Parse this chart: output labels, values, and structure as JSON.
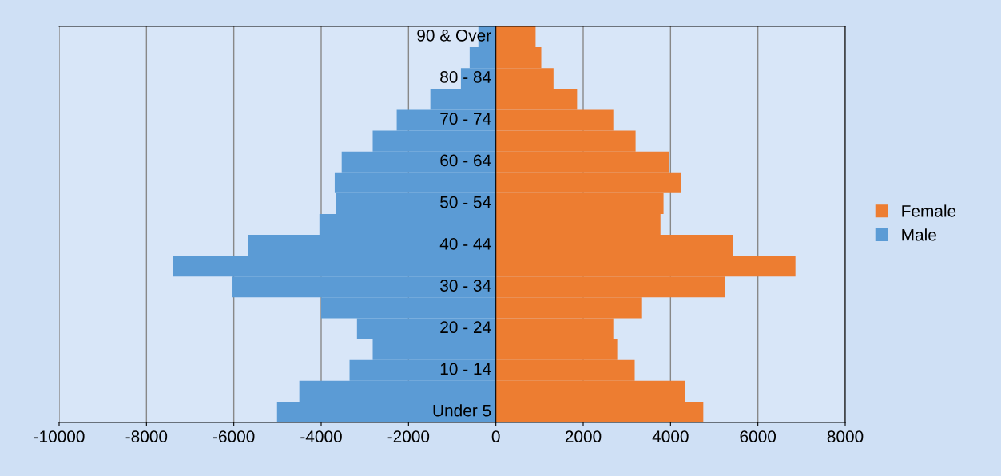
{
  "chart_data": {
    "type": "bar",
    "orientation": "horizontal",
    "categories": [
      "90 & Over",
      null,
      "80 - 84",
      null,
      "70 - 74",
      null,
      "60 - 64",
      null,
      "50 - 54",
      null,
      "40 - 44",
      null,
      "30 - 34",
      null,
      "20 - 24",
      null,
      "10 - 14",
      null,
      "Under 5"
    ],
    "series": [
      {
        "name": "Female",
        "color": "#ed7d31",
        "values": [
          910,
          1040,
          1320,
          1860,
          2690,
          3200,
          3970,
          4240,
          3840,
          3770,
          5430,
          6860,
          5250,
          3330,
          2690,
          2780,
          3180,
          4330,
          4750
        ]
      },
      {
        "name": "Male",
        "color": "#5b9bd5",
        "values": [
          -400,
          -600,
          -800,
          -1500,
          -2270,
          -2820,
          -3530,
          -3690,
          -3660,
          -4040,
          -5670,
          -7390,
          -6030,
          -4000,
          -3180,
          -2820,
          -3350,
          -4500,
          -5010
        ]
      }
    ],
    "xlim": [
      -10000,
      8000
    ],
    "xticks": [
      -10000,
      -8000,
      -6000,
      -4000,
      -2000,
      0,
      2000,
      4000,
      6000,
      8000
    ],
    "grid": "x",
    "legend": "right",
    "stacked": true
  }
}
